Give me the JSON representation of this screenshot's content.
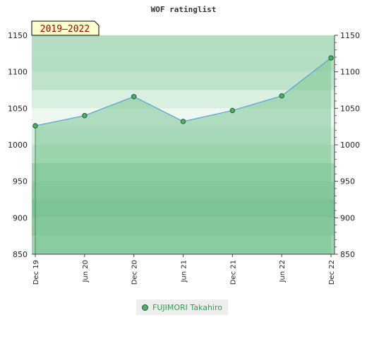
{
  "chart_data": {
    "type": "area",
    "title": "WOF ratinglist",
    "badge": "2019–2022",
    "x": [
      "Dec 19",
      "Jun 20",
      "Dec 20",
      "Jun 21",
      "Dec 21",
      "Jun 22",
      "Dec 22"
    ],
    "series": [
      {
        "name": "FUJIMORI Takahiro",
        "values": [
          1026,
          1040,
          1066,
          1032,
          1047,
          1067,
          1119
        ]
      }
    ],
    "ylim": [
      850,
      1150
    ],
    "yticks": [
      850,
      900,
      950,
      1000,
      1050,
      1100,
      1150
    ],
    "xlabel": "",
    "ylabel": "",
    "legend_position": "bottom-center",
    "grid": true,
    "colors": {
      "line": "#5b9fd6",
      "marker": "#4fae6a",
      "area": "#7cc495"
    }
  }
}
